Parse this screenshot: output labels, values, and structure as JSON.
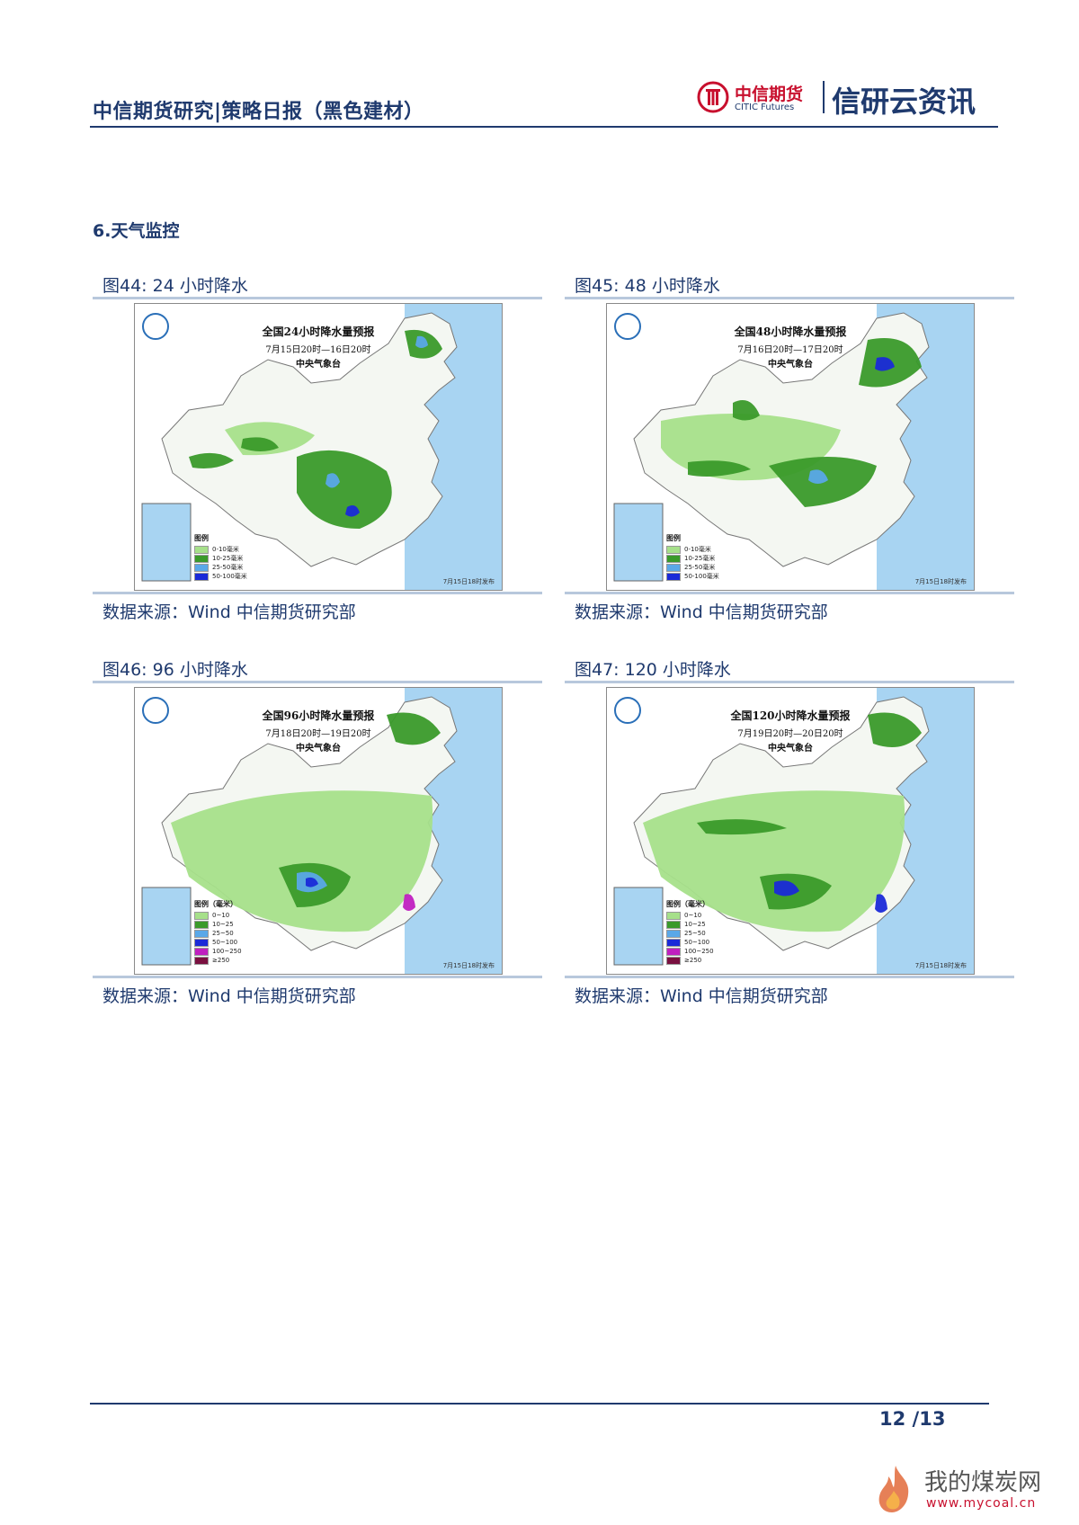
{
  "header": {
    "title": "中信期货研究|策略日报（黑色建材）",
    "logo_cn": "中信期货",
    "logo_en": "CITIC Futures",
    "brand": "信研云资讯"
  },
  "section": {
    "title": "6.天气监控"
  },
  "figures": [
    {
      "title": "图44: 24 小时降水",
      "source": "数据来源：Wind  中信期货研究部",
      "map": {
        "title": "全国24小时降水量预报",
        "date": "7月15日20时—16日20时",
        "issuer": "中央气象台",
        "legend_title": "图例",
        "legend": [
          {
            "label": "0-10毫米",
            "color": "#a6e08a"
          },
          {
            "label": "10-25毫米",
            "color": "#3a9a2a"
          },
          {
            "label": "25-50毫米",
            "color": "#5aa8e8"
          },
          {
            "label": "50-100毫米",
            "color": "#1a2ad8"
          }
        ],
        "release": "7月15日18时发布"
      }
    },
    {
      "title": "图45: 48 小时降水",
      "source": "数据来源：Wind  中信期货研究部",
      "map": {
        "title": "全国48小时降水量预报",
        "date": "7月16日20时—17日20时",
        "issuer": "中央气象台",
        "legend_title": "图例",
        "legend": [
          {
            "label": "0-10毫米",
            "color": "#a6e08a"
          },
          {
            "label": "10-25毫米",
            "color": "#3a9a2a"
          },
          {
            "label": "25-50毫米",
            "color": "#5aa8e8"
          },
          {
            "label": "50-100毫米",
            "color": "#1a2ad8"
          }
        ],
        "release": "7月15日18时发布"
      }
    },
    {
      "title": "图46: 96 小时降水",
      "source": "数据来源：Wind  中信期货研究部",
      "map": {
        "title": "全国96小时降水量预报",
        "date": "7月18日20时—19日20时",
        "issuer": "中央气象台",
        "legend_title": "图例（毫米）",
        "legend": [
          {
            "label": "0~10",
            "color": "#a6e08a"
          },
          {
            "label": "10~25",
            "color": "#3a9a2a"
          },
          {
            "label": "25~50",
            "color": "#5aa8e8"
          },
          {
            "label": "50~100",
            "color": "#1a2ad8"
          },
          {
            "label": "100~250",
            "color": "#c020c0"
          },
          {
            "label": "≥250",
            "color": "#7a1040"
          }
        ],
        "release": "7月15日18时发布"
      }
    },
    {
      "title": "图47: 120 小时降水",
      "source": "数据来源：Wind  中信期货研究部",
      "map": {
        "title": "全国120小时降水量预报",
        "date": "7月19日20时—20日20时",
        "issuer": "中央气象台",
        "legend_title": "图例（毫米）",
        "legend": [
          {
            "label": "0~10",
            "color": "#a6e08a"
          },
          {
            "label": "10~25",
            "color": "#3a9a2a"
          },
          {
            "label": "25~50",
            "color": "#5aa8e8"
          },
          {
            "label": "50~100",
            "color": "#1a2ad8"
          },
          {
            "label": "100~250",
            "color": "#c020c0"
          },
          {
            "label": "≥250",
            "color": "#7a1040"
          }
        ],
        "release": "7月15日18时发布"
      }
    }
  ],
  "footer": {
    "page": "12 /13"
  },
  "watermark": {
    "cn": "我的煤炭网",
    "url": "www.mycoal.cn"
  },
  "colors": {
    "accent": "#1f3a6e",
    "brand_red": "#c8102e",
    "rule_light": "#b8c8dc",
    "sea": "#a8d4f2"
  }
}
